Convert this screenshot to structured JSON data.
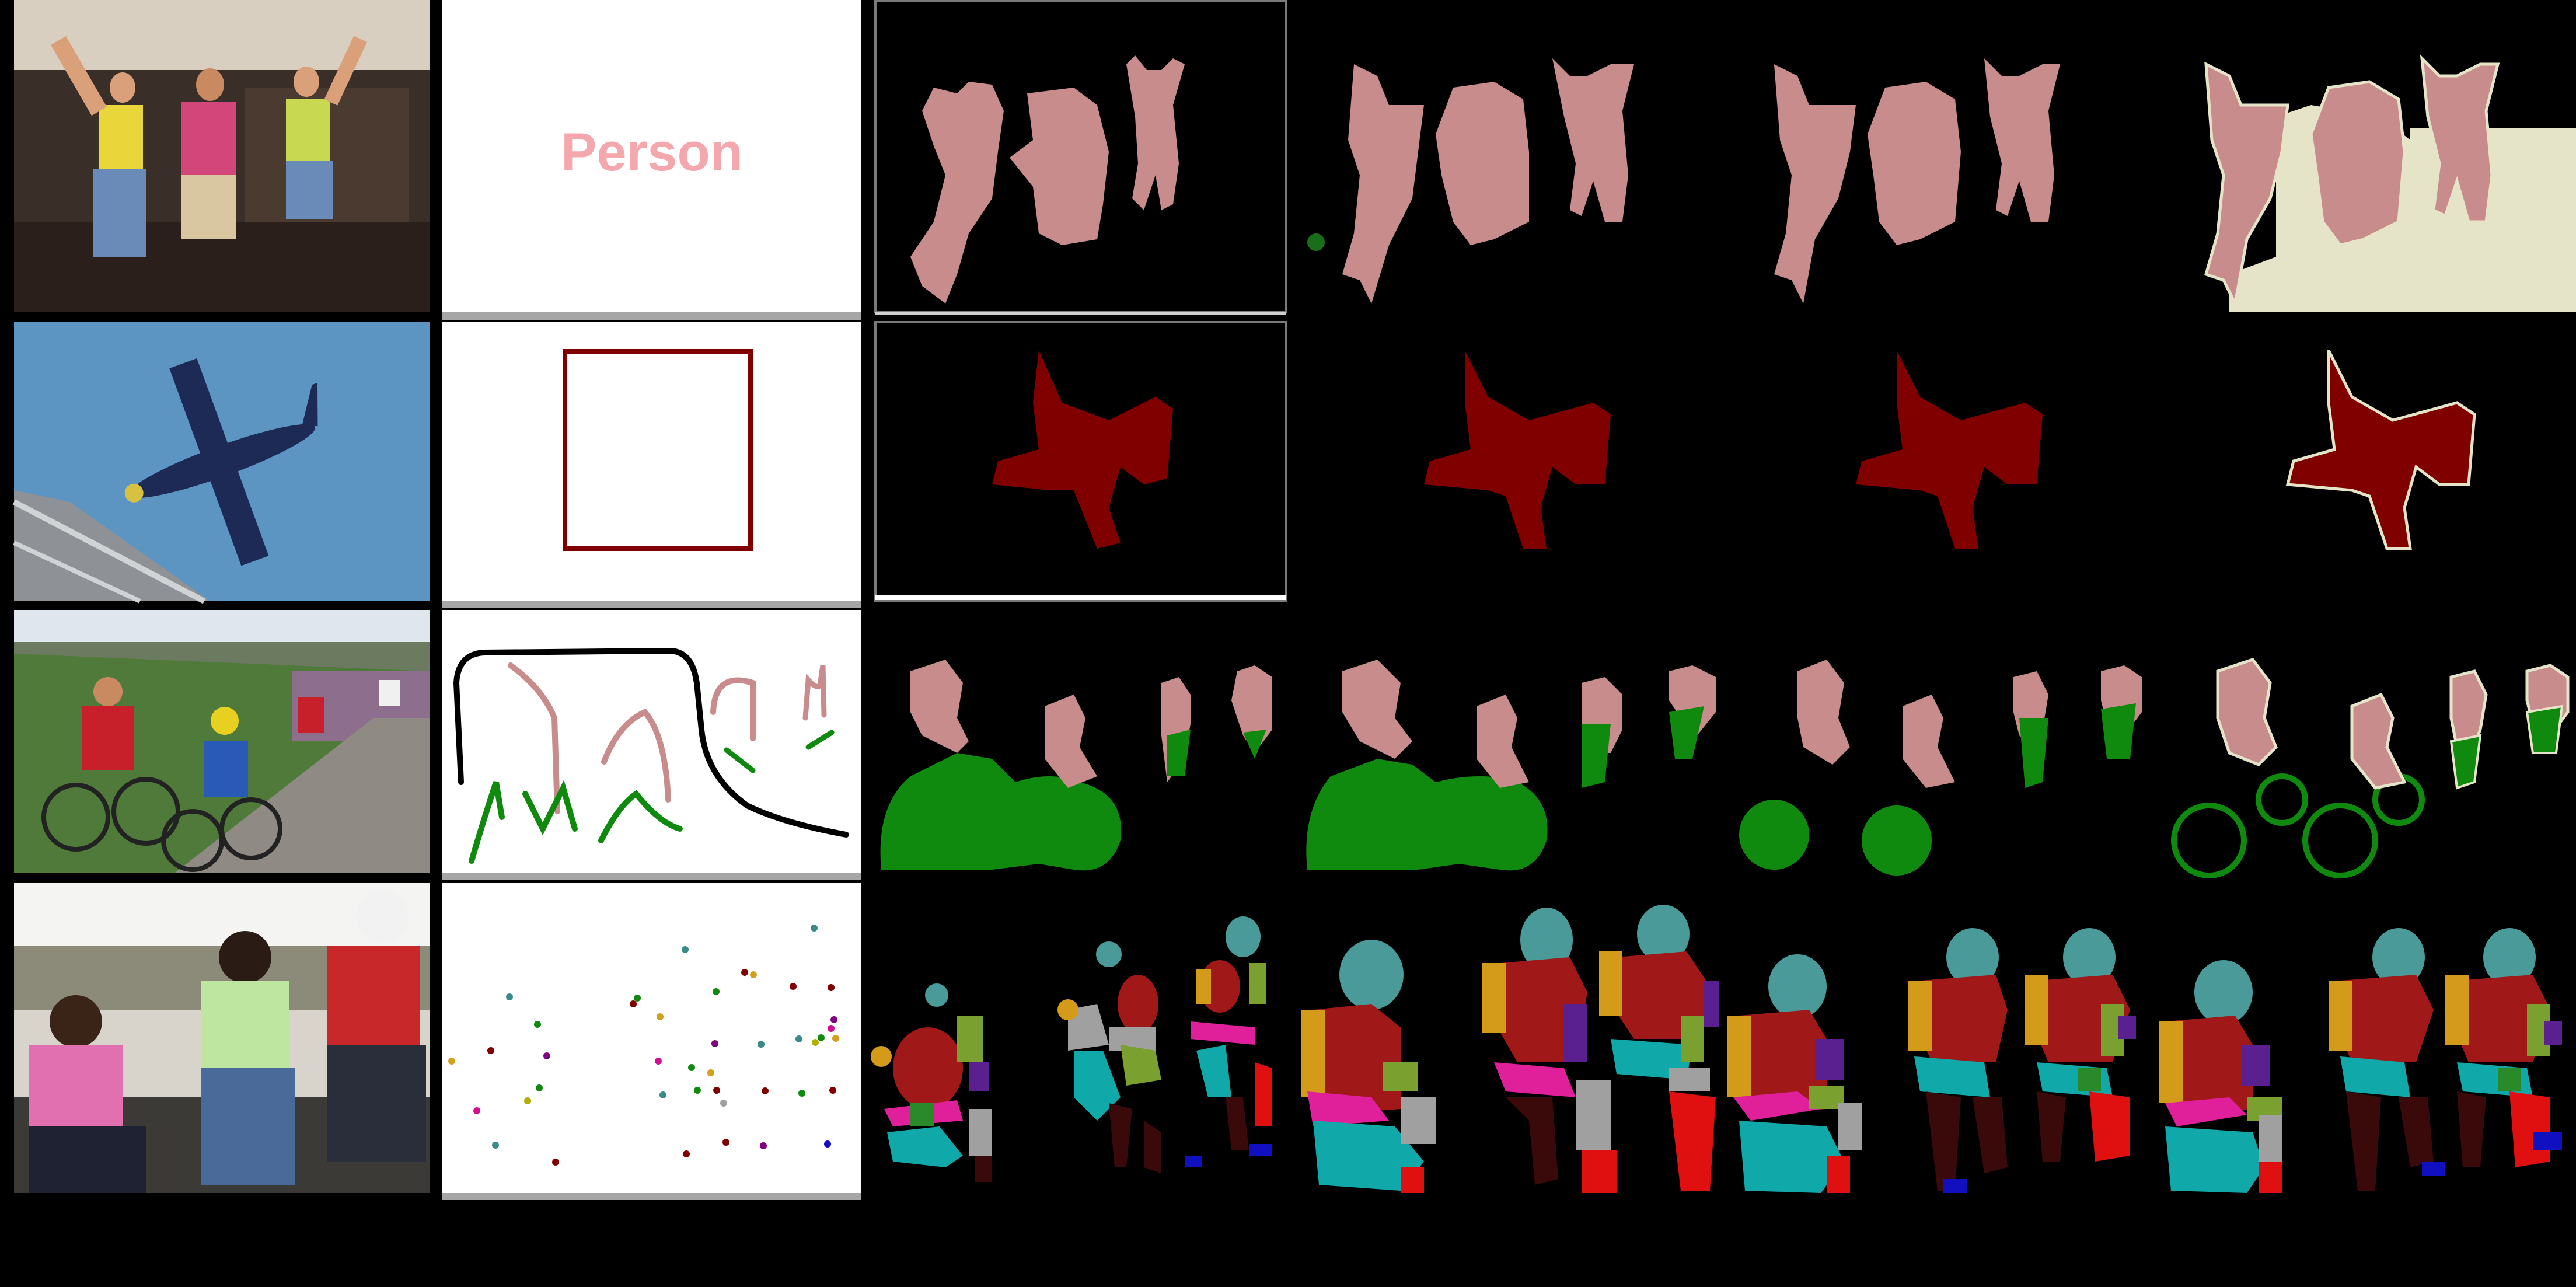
{
  "figure": {
    "rows": [
      "people-jumping",
      "airplane",
      "cyclists",
      "people-sitting"
    ],
    "columns": [
      "input-image",
      "prompt",
      "result-1",
      "result-2",
      "result-3",
      "ground-truth"
    ]
  },
  "prompts": {
    "text_prompt": "Person",
    "box_prompt": "box",
    "scribble_prompt": "scribbles",
    "point_prompt": "points"
  },
  "colors": {
    "person": "#c98c8c",
    "airplane": "#800000",
    "bicycle": "#0f8a0f",
    "background_white": "#ffffff",
    "separator_gray": "#a6a6a6",
    "void": "#e6e4c8",
    "sky": "#5a8fb8",
    "grass": "#4f7a3a"
  }
}
